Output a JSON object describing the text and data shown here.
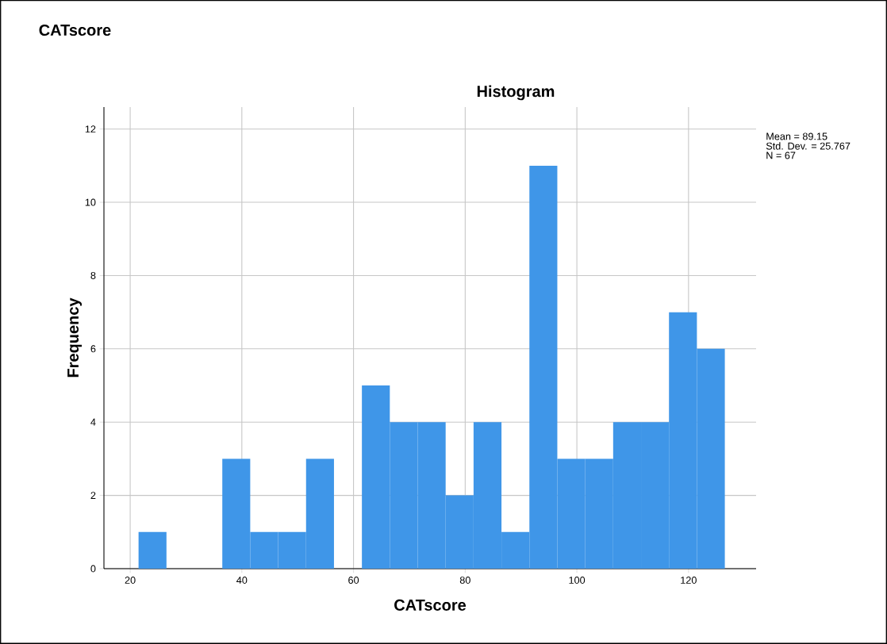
{
  "chart_data": {
    "type": "histogram",
    "title": "Histogram",
    "xlabel": "CATscore",
    "ylabel": "Frequency",
    "annotations": [
      "CATscore",
      "Mean = 89.15",
      "Std. Dev. = 25.767",
      "N = 67"
    ],
    "bins": [
      21.5,
      26.5,
      31.5,
      36.5,
      41.5,
      46.5,
      51.5,
      56.5,
      61.5,
      66.5,
      71.5,
      76.5,
      81.5,
      86.5,
      91.5,
      96.5,
      101.5,
      106.5,
      111.5,
      116.5,
      121.5,
      126.5
    ],
    "values": [
      1,
      0,
      0,
      3,
      1,
      1,
      3,
      0,
      5,
      4,
      4,
      2,
      4,
      1,
      11,
      3,
      3,
      4,
      4,
      7,
      6
    ],
    "color": "#3f96e8",
    "xlim": [
      15.3,
      132.1
    ],
    "ylim": [
      0,
      12.6
    ],
    "xticks": [
      20,
      40,
      60,
      80,
      100,
      120
    ],
    "yticks": [
      0,
      2,
      4,
      6,
      8,
      10,
      12
    ],
    "grid": true
  }
}
